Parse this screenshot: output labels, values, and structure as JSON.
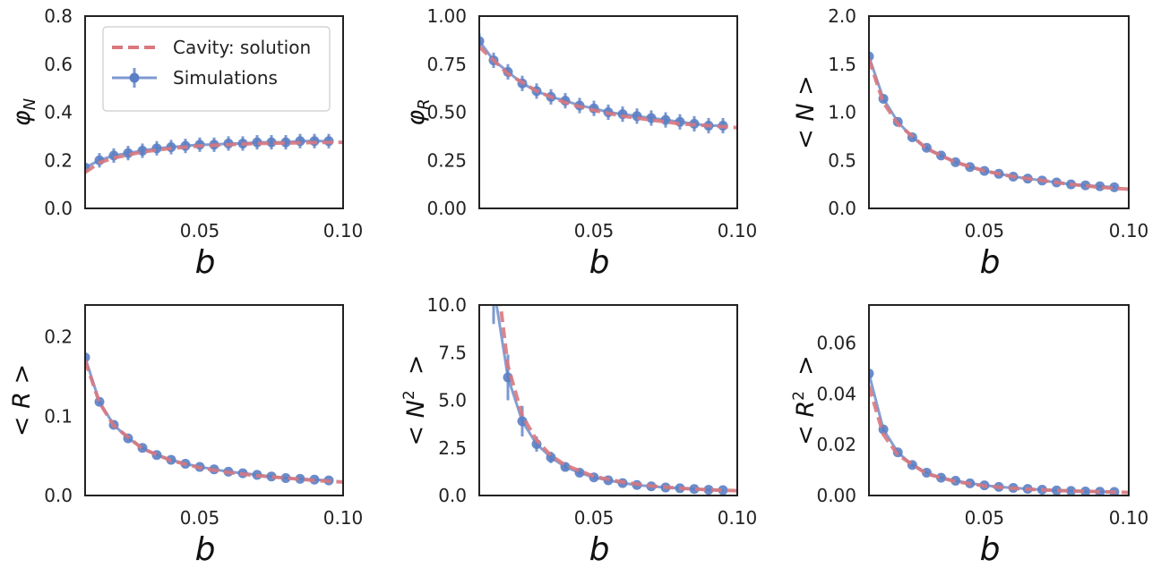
{
  "colors": {
    "cavity": "#d9787e",
    "simulations": "#5b7fc4",
    "frame": "#222222"
  },
  "legend": {
    "placement": "upper-left of first panel",
    "items": [
      {
        "label": "Cavity: solution",
        "style": "dashed line"
      },
      {
        "label": "Simulations",
        "style": "line with markers and error bars"
      }
    ]
  },
  "chart_data": [
    {
      "type": "line",
      "xlabel": "b",
      "ylabel_base": "φ",
      "ylabel_sub": "N",
      "ylabel_prefix": "",
      "ylabel_sup": "",
      "xlim": [
        0.01,
        0.1
      ],
      "ylim": [
        0,
        0.8
      ],
      "xticks": [
        "0.05",
        "0.10"
      ],
      "xtick_values": [
        0.05,
        0.1
      ],
      "yticks": [
        "0.0",
        "0.2",
        "0.4",
        "0.6",
        "0.8"
      ],
      "ytick_values": [
        0,
        0.2,
        0.4,
        0.6,
        0.8
      ],
      "series": [
        {
          "name": "Cavity: solution",
          "x": [
            0.01,
            0.015,
            0.02,
            0.03,
            0.04,
            0.05,
            0.06,
            0.07,
            0.08,
            0.09,
            0.1
          ],
          "y": [
            0.15,
            0.19,
            0.21,
            0.235,
            0.25,
            0.26,
            0.265,
            0.27,
            0.272,
            0.274,
            0.275
          ]
        },
        {
          "name": "Simulations",
          "x": [
            0.01,
            0.015,
            0.02,
            0.025,
            0.03,
            0.035,
            0.04,
            0.045,
            0.05,
            0.055,
            0.06,
            0.065,
            0.07,
            0.075,
            0.08,
            0.085,
            0.09,
            0.095
          ],
          "y": [
            0.17,
            0.2,
            0.22,
            0.23,
            0.24,
            0.25,
            0.255,
            0.26,
            0.265,
            0.265,
            0.27,
            0.27,
            0.275,
            0.275,
            0.275,
            0.28,
            0.28,
            0.28
          ],
          "err": [
            0.02,
            0.03,
            0.03,
            0.03,
            0.03,
            0.03,
            0.03,
            0.03,
            0.03,
            0.03,
            0.03,
            0.03,
            0.03,
            0.03,
            0.03,
            0.03,
            0.03,
            0.03
          ]
        }
      ]
    },
    {
      "type": "line",
      "xlabel": "b",
      "ylabel_base": "φ",
      "ylabel_sub": "R",
      "ylabel_prefix": "",
      "ylabel_sup": "",
      "xlim": [
        0.01,
        0.1
      ],
      "ylim": [
        0,
        1.0
      ],
      "xticks": [
        "0.05",
        "0.10"
      ],
      "xtick_values": [
        0.05,
        0.1
      ],
      "yticks": [
        "0.00",
        "0.25",
        "0.50",
        "0.75",
        "1.00"
      ],
      "ytick_values": [
        0,
        0.25,
        0.5,
        0.75,
        1.0
      ],
      "series": [
        {
          "name": "Cavity: solution",
          "x": [
            0.01,
            0.015,
            0.02,
            0.03,
            0.04,
            0.05,
            0.06,
            0.07,
            0.08,
            0.09,
            0.1
          ],
          "y": [
            0.84,
            0.77,
            0.7,
            0.61,
            0.55,
            0.51,
            0.48,
            0.46,
            0.44,
            0.43,
            0.42
          ]
        },
        {
          "name": "Simulations",
          "x": [
            0.01,
            0.015,
            0.02,
            0.025,
            0.03,
            0.035,
            0.04,
            0.045,
            0.05,
            0.055,
            0.06,
            0.065,
            0.07,
            0.075,
            0.08,
            0.085,
            0.09,
            0.095
          ],
          "y": [
            0.87,
            0.77,
            0.71,
            0.65,
            0.61,
            0.58,
            0.56,
            0.535,
            0.52,
            0.5,
            0.49,
            0.48,
            0.47,
            0.46,
            0.45,
            0.44,
            0.43,
            0.43
          ],
          "err": [
            0.04,
            0.04,
            0.04,
            0.04,
            0.04,
            0.04,
            0.04,
            0.04,
            0.04,
            0.04,
            0.04,
            0.04,
            0.04,
            0.04,
            0.04,
            0.04,
            0.04,
            0.04
          ]
        }
      ]
    },
    {
      "type": "line",
      "xlabel": "b",
      "ylabel_base": "N",
      "ylabel_sub": "",
      "ylabel_prefix": "<",
      "ylabel_sup": "",
      "xlim": [
        0.01,
        0.1
      ],
      "ylim": [
        0,
        2.0
      ],
      "xticks": [
        "0.05",
        "0.10"
      ],
      "xtick_values": [
        0.05,
        0.1
      ],
      "yticks": [
        "0.0",
        "0.5",
        "1.0",
        "1.5",
        "2.0"
      ],
      "ytick_values": [
        0,
        0.5,
        1.0,
        1.5,
        2.0
      ],
      "series": [
        {
          "name": "Cavity: solution",
          "x": [
            0.01,
            0.015,
            0.02,
            0.03,
            0.04,
            0.05,
            0.06,
            0.07,
            0.08,
            0.09,
            0.1
          ],
          "y": [
            1.55,
            1.1,
            0.88,
            0.62,
            0.48,
            0.39,
            0.33,
            0.29,
            0.25,
            0.22,
            0.2
          ]
        },
        {
          "name": "Simulations",
          "x": [
            0.01,
            0.015,
            0.02,
            0.025,
            0.03,
            0.035,
            0.04,
            0.045,
            0.05,
            0.055,
            0.06,
            0.065,
            0.07,
            0.075,
            0.08,
            0.085,
            0.09,
            0.095
          ],
          "y": [
            1.58,
            1.14,
            0.9,
            0.74,
            0.63,
            0.55,
            0.48,
            0.43,
            0.39,
            0.36,
            0.33,
            0.31,
            0.29,
            0.27,
            0.25,
            0.24,
            0.23,
            0.22
          ],
          "err": [
            0.05,
            0.03,
            0.02,
            0.02,
            0.02,
            0.02,
            0.01,
            0.01,
            0.01,
            0.01,
            0.01,
            0.01,
            0.01,
            0.01,
            0.01,
            0.01,
            0.01,
            0.01
          ]
        }
      ]
    },
    {
      "type": "line",
      "xlabel": "b",
      "ylabel_base": "R",
      "ylabel_sub": "",
      "ylabel_prefix": "<",
      "ylabel_sup": "",
      "xlim": [
        0.01,
        0.1
      ],
      "ylim": [
        0,
        0.24
      ],
      "xticks": [
        "0.05",
        "0.10"
      ],
      "xtick_values": [
        0.05,
        0.1
      ],
      "yticks": [
        "0.0",
        "0.1",
        "0.2"
      ],
      "ytick_values": [
        0,
        0.1,
        0.2
      ],
      "series": [
        {
          "name": "Cavity: solution",
          "x": [
            0.01,
            0.015,
            0.02,
            0.03,
            0.04,
            0.05,
            0.06,
            0.07,
            0.08,
            0.09,
            0.1
          ],
          "y": [
            0.17,
            0.117,
            0.088,
            0.059,
            0.044,
            0.035,
            0.029,
            0.025,
            0.022,
            0.019,
            0.017
          ]
        },
        {
          "name": "Simulations",
          "x": [
            0.01,
            0.015,
            0.02,
            0.025,
            0.03,
            0.035,
            0.04,
            0.045,
            0.05,
            0.055,
            0.06,
            0.065,
            0.07,
            0.075,
            0.08,
            0.085,
            0.09,
            0.095
          ],
          "y": [
            0.174,
            0.118,
            0.089,
            0.072,
            0.06,
            0.051,
            0.045,
            0.04,
            0.036,
            0.033,
            0.03,
            0.028,
            0.026,
            0.024,
            0.022,
            0.021,
            0.02,
            0.019
          ],
          "err": [
            0.003,
            0.002,
            0.002,
            0.001,
            0.001,
            0.001,
            0.001,
            0.001,
            0.001,
            0.001,
            0.001,
            0.001,
            0.001,
            0.001,
            0.001,
            0.001,
            0.001,
            0.001
          ]
        }
      ]
    },
    {
      "type": "line",
      "xlabel": "b",
      "ylabel_base": "N",
      "ylabel_sub": "",
      "ylabel_prefix": "<",
      "ylabel_sup": "2",
      "xlim": [
        0.01,
        0.1
      ],
      "ylim": [
        0,
        10.0
      ],
      "xticks": [
        "0.05",
        "0.10"
      ],
      "xtick_values": [
        0.05,
        0.1
      ],
      "yticks": [
        "0.0",
        "2.5",
        "5.0",
        "7.5",
        "10.0"
      ],
      "ytick_values": [
        0,
        2.5,
        5.0,
        7.5,
        10.0
      ],
      "series": [
        {
          "name": "Cavity: solution",
          "x": [
            0.017,
            0.02,
            0.025,
            0.03,
            0.035,
            0.04,
            0.05,
            0.06,
            0.07,
            0.08,
            0.09,
            0.1
          ],
          "y": [
            10.5,
            6.8,
            4.2,
            2.9,
            2.1,
            1.6,
            1.0,
            0.7,
            0.5,
            0.38,
            0.3,
            0.25
          ]
        },
        {
          "name": "Simulations",
          "x": [
            0.015,
            0.02,
            0.025,
            0.03,
            0.035,
            0.04,
            0.045,
            0.05,
            0.055,
            0.06,
            0.065,
            0.07,
            0.075,
            0.08,
            0.085,
            0.09,
            0.095
          ],
          "y": [
            11.0,
            6.2,
            3.9,
            2.7,
            2.0,
            1.5,
            1.2,
            0.95,
            0.8,
            0.65,
            0.55,
            0.48,
            0.42,
            0.38,
            0.34,
            0.3,
            0.28
          ],
          "err": [
            2.0,
            1.2,
            0.8,
            0.4,
            0.3,
            0.2,
            0.15,
            0.1,
            0.08,
            0.06,
            0.05,
            0.04,
            0.04,
            0.03,
            0.03,
            0.03,
            0.03
          ]
        }
      ]
    },
    {
      "type": "line",
      "xlabel": "b",
      "ylabel_base": "R",
      "ylabel_sub": "",
      "ylabel_prefix": "<",
      "ylabel_sup": "2",
      "xlim": [
        0.01,
        0.1
      ],
      "ylim": [
        0,
        0.075
      ],
      "xticks": [
        "0.05",
        "0.10"
      ],
      "xtick_values": [
        0.05,
        0.1
      ],
      "yticks": [
        "0.00",
        "0.02",
        "0.04",
        "0.06"
      ],
      "ytick_values": [
        0,
        0.02,
        0.04,
        0.06
      ],
      "series": [
        {
          "name": "Cavity: solution",
          "x": [
            0.01,
            0.015,
            0.02,
            0.03,
            0.04,
            0.05,
            0.06,
            0.07,
            0.08,
            0.09,
            0.1
          ],
          "y": [
            0.043,
            0.024,
            0.016,
            0.0085,
            0.0055,
            0.0038,
            0.0028,
            0.0022,
            0.0018,
            0.0015,
            0.0012
          ]
        },
        {
          "name": "Simulations",
          "x": [
            0.01,
            0.015,
            0.02,
            0.025,
            0.03,
            0.035,
            0.04,
            0.045,
            0.05,
            0.055,
            0.06,
            0.065,
            0.07,
            0.075,
            0.08,
            0.085,
            0.09,
            0.095
          ],
          "y": [
            0.048,
            0.026,
            0.017,
            0.012,
            0.009,
            0.007,
            0.0058,
            0.0048,
            0.004,
            0.0034,
            0.003,
            0.0026,
            0.0023,
            0.002,
            0.0018,
            0.0016,
            0.0015,
            0.0014
          ],
          "err": [
            0.0015,
            0.0008,
            0.0005,
            0.0004,
            0.0003,
            0.0003,
            0.0002,
            0.0002,
            0.0002,
            0.0002,
            0.0001,
            0.0001,
            0.0001,
            0.0001,
            0.0001,
            0.0001,
            0.0001,
            0.0001
          ]
        }
      ]
    }
  ]
}
